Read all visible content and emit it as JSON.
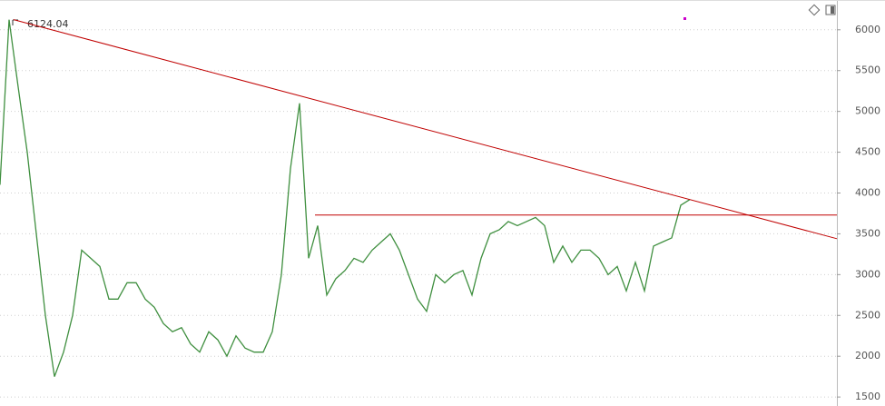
{
  "chart_data": {
    "type": "line",
    "annotation": "6124.04",
    "series": [
      {
        "color": "#3f8f3f",
        "values": [
          4100,
          6124.04,
          5300,
          4500,
          3500,
          2500,
          1750,
          2050,
          2500,
          3300,
          3200,
          3100,
          2700,
          2700,
          2900,
          2900,
          2700,
          2600,
          2400,
          2300,
          2350,
          2150,
          2050,
          2300,
          2200,
          2000,
          2250,
          2100,
          2050,
          2050,
          2300,
          3000,
          4300,
          5100,
          3200,
          3600,
          2750,
          2950,
          3050,
          3200,
          3150,
          3300,
          3400,
          3500,
          3300,
          3000,
          2700,
          2550,
          3000,
          2900,
          3000,
          3050,
          2750,
          3200,
          3500,
          3550,
          3650,
          3600,
          3650,
          3700,
          3600,
          3150,
          3350,
          3150,
          3300,
          3300,
          3200,
          3000,
          3100,
          2800,
          3150,
          2800,
          3350,
          3400,
          3450,
          3850,
          3920
        ]
      }
    ],
    "trendlines": [
      {
        "color": "#c00000",
        "start": [
          1.5,
          6124.04
        ],
        "end": [
          92.2,
          3440
        ]
      },
      {
        "color": "#c00000",
        "start": [
          34.7,
          3730
        ],
        "end": [
          92.2,
          3730
        ]
      }
    ],
    "ylim": [
      1390,
      6365
    ],
    "yticks": [
      1500,
      2000,
      2500,
      3000,
      3500,
      4000,
      4500,
      5000,
      5500,
      6000
    ],
    "grid": true
  }
}
